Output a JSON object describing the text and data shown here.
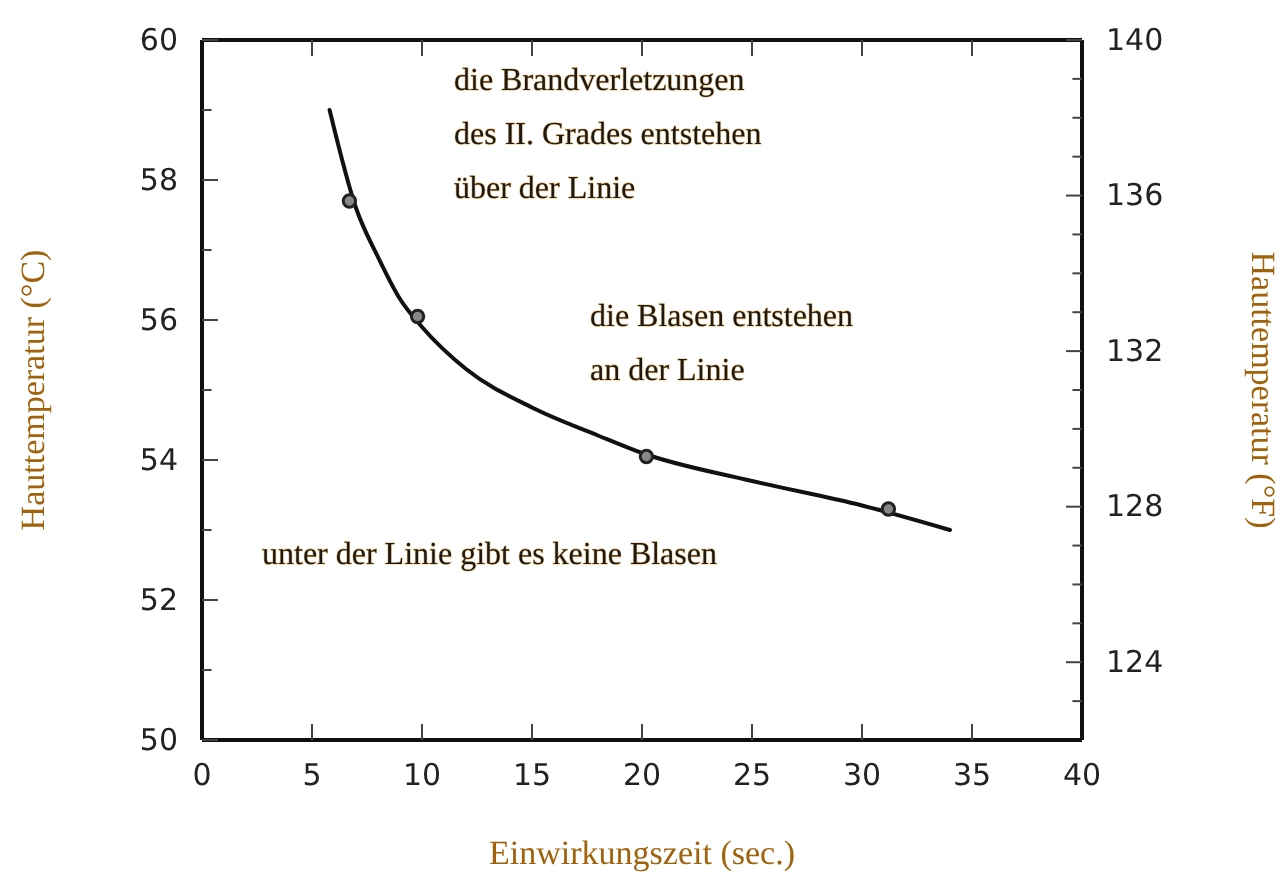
{
  "chart_data": {
    "type": "line",
    "xlabel": "Einwirkungszeit (sec.)",
    "ylabel": "Hauttemperatur (°C)",
    "y2label": "Hauttemperatur (°F)",
    "xlim": [
      0,
      40
    ],
    "xticks": [
      0,
      5,
      10,
      15,
      20,
      25,
      30,
      35,
      40
    ],
    "ylim": [
      50,
      60
    ],
    "yticks": [
      50,
      {
        "value": 51,
        "label": null
      },
      52,
      {
        "value": 53,
        "label": null
      },
      54,
      {
        "value": 55,
        "label": null
      },
      56,
      {
        "value": 57,
        "label": null
      },
      58,
      {
        "value": 59,
        "label": null
      },
      60
    ],
    "y2lim": [
      122,
      140
    ],
    "y2ticks": [
      {
        "value": 123,
        "label": null
      },
      124,
      {
        "value": 125,
        "label": null
      },
      {
        "value": 126,
        "label": null
      },
      {
        "value": 127,
        "label": null
      },
      128,
      {
        "value": 129,
        "label": null
      },
      {
        "value": 130,
        "label": null
      },
      {
        "value": 131,
        "label": null
      },
      132,
      {
        "value": 133,
        "label": null
      },
      {
        "value": 134,
        "label": null
      },
      {
        "value": 135,
        "label": null
      },
      136,
      {
        "value": 137,
        "label": null
      },
      {
        "value": 138,
        "label": null
      },
      {
        "value": 139,
        "label": null
      },
      140
    ],
    "grid": false,
    "series": [
      {
        "color": "#111111",
        "marker": "none",
        "x": [
          5.8,
          7,
          8,
          9,
          10,
          12,
          15,
          18,
          20,
          25,
          30,
          34
        ],
        "values": [
          59.0,
          57.6,
          56.9,
          56.3,
          55.9,
          55.3,
          54.75,
          54.35,
          54.1,
          53.7,
          53.35,
          53.0
        ]
      },
      {
        "type": "scatter",
        "color": "#222222",
        "marker": "circle",
        "x": [
          6.7,
          9.8,
          20.2,
          31.2
        ],
        "values": [
          57.7,
          56.05,
          54.05,
          53.3
        ]
      }
    ],
    "annotations": [
      "die Brandverletzungen\ndes II. Grades entstehen\nüber der Linie",
      "die Blasen entstehen\nan der Linie",
      "unter der Linie gibt es keine Blasen"
    ]
  }
}
